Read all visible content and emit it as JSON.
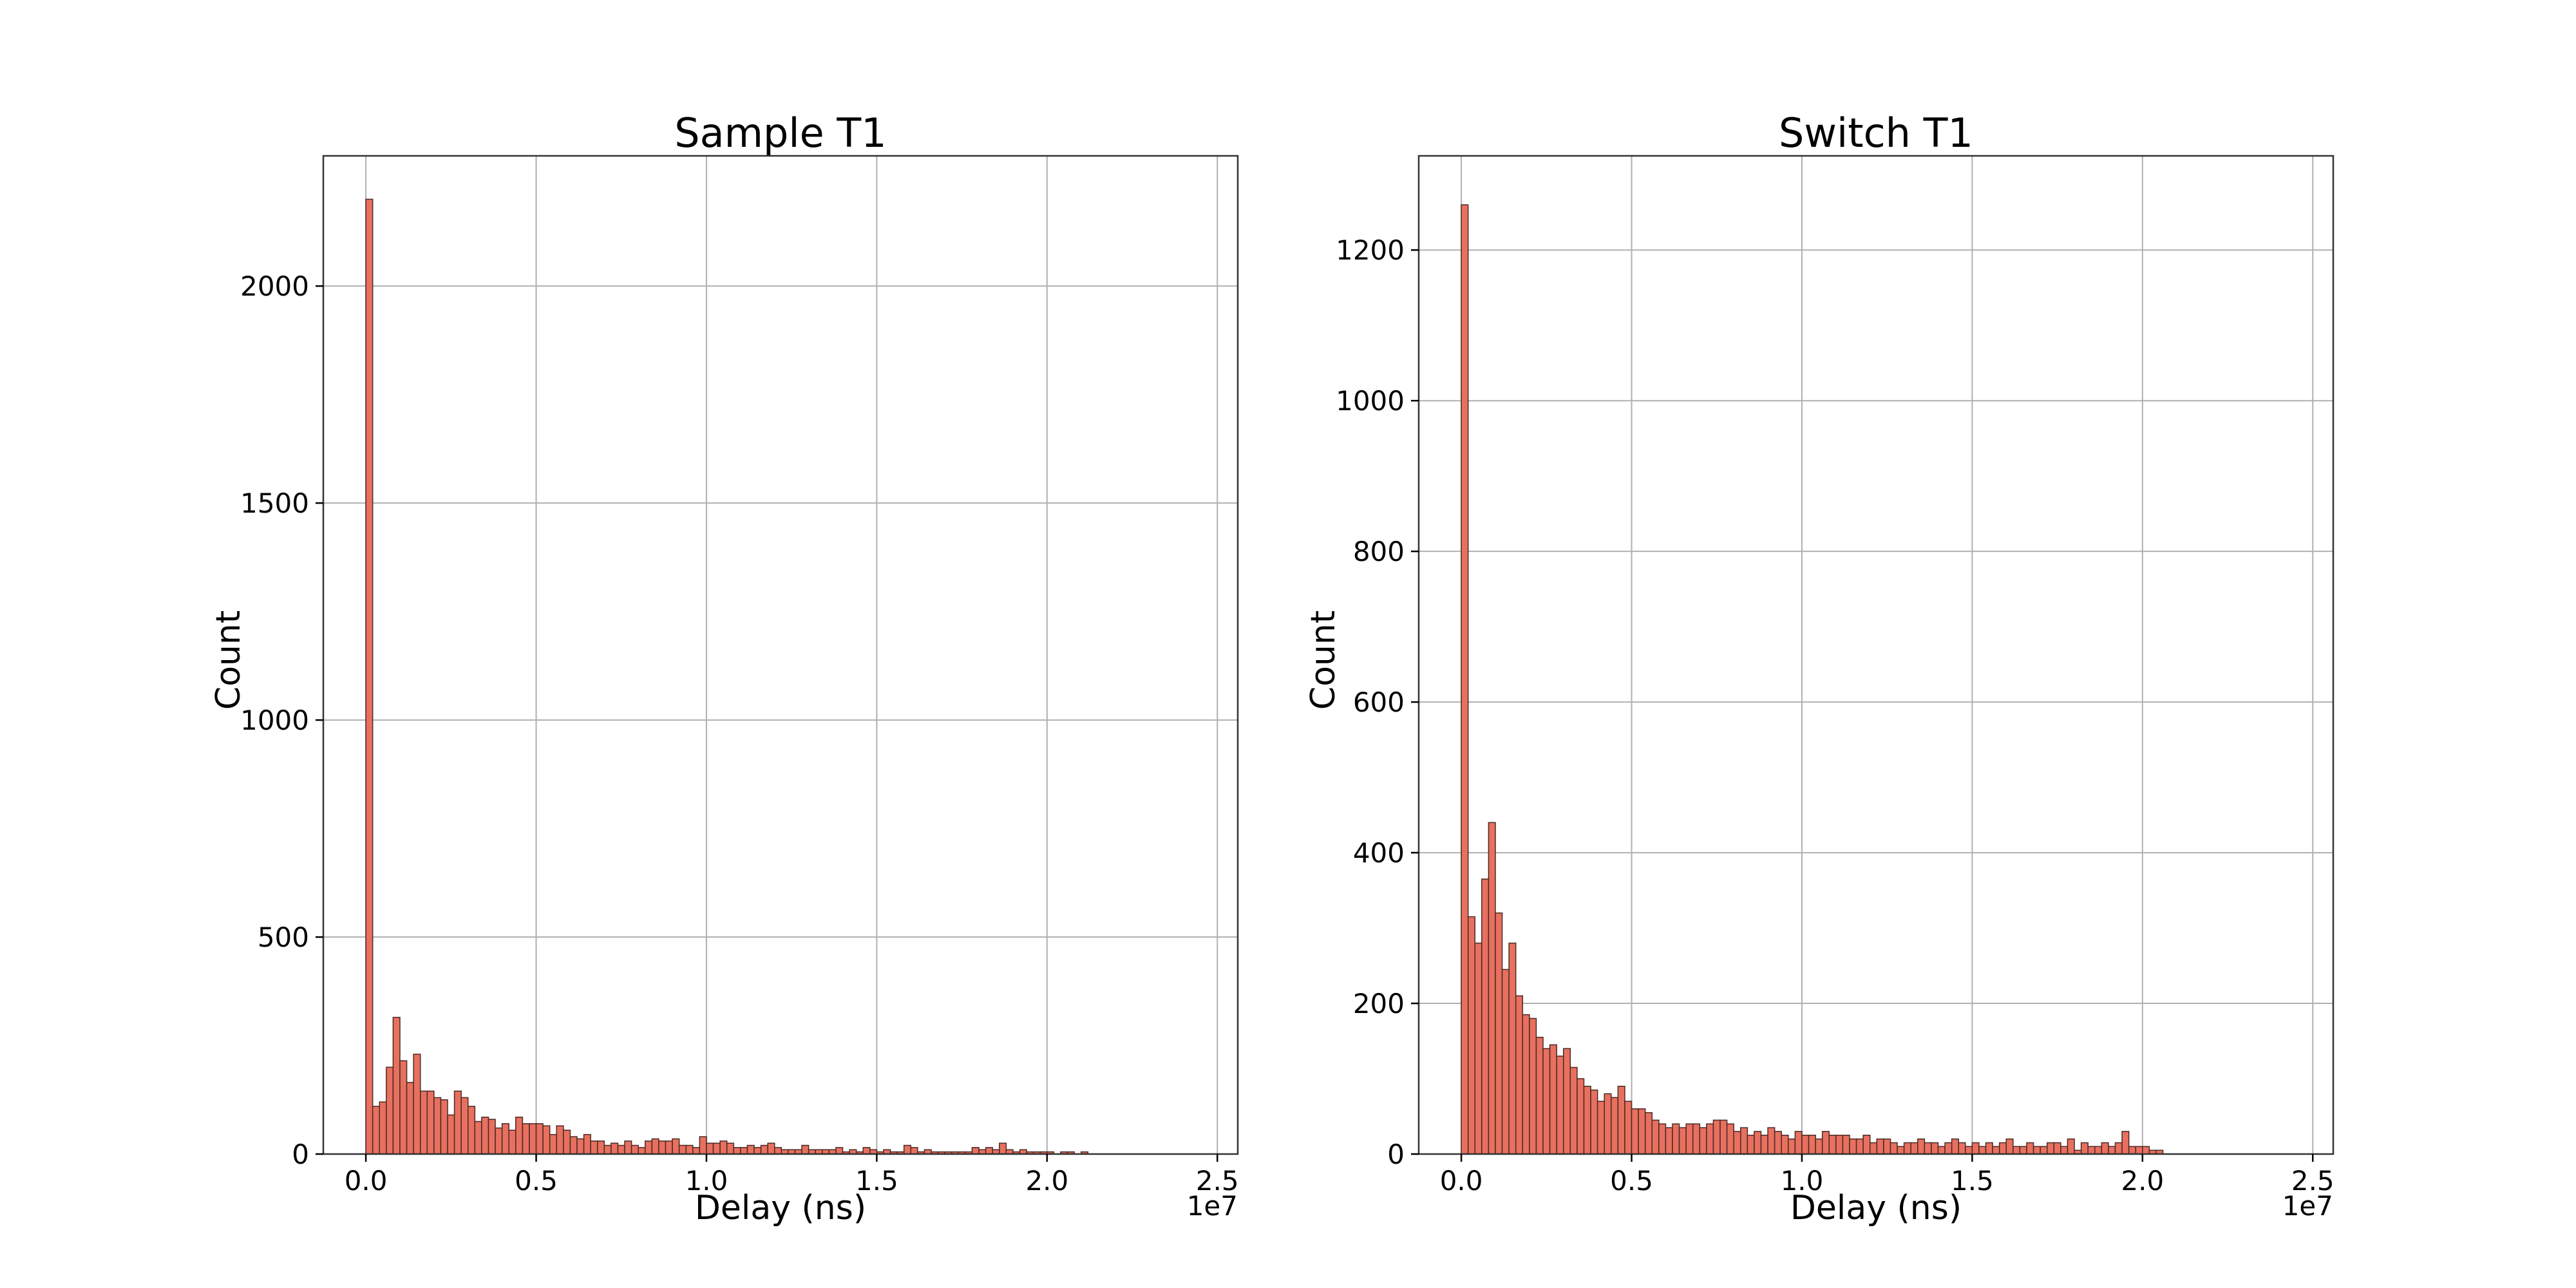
{
  "colors": {
    "bar_fill": "#e8705f",
    "bar_edge": "#4a2a26",
    "grid": "#b0b0b0"
  },
  "chart_data": [
    {
      "type": "bar",
      "title": "Sample T1",
      "xlabel": "Delay (ns)",
      "ylabel": "Count",
      "x_offset_label": "1e7",
      "grid": true,
      "xlim": [
        -0.125,
        2.56
      ],
      "ylim": [
        0,
        2300
      ],
      "xticks": [
        0,
        0.5,
        1.0,
        1.5,
        2.0,
        2.5
      ],
      "xtick_labels": [
        "0.0",
        "0.5",
        "1.0",
        "1.5",
        "2.0",
        "2.5"
      ],
      "yticks": [
        0,
        500,
        1000,
        1500,
        2000
      ],
      "ytick_labels": [
        "0",
        "500",
        "1000",
        "1500",
        "2000"
      ],
      "bin_start": 0,
      "bin_width": 0.2,
      "bins": 120,
      "values": [
        2200,
        110,
        120,
        200,
        315,
        215,
        165,
        230,
        145,
        145,
        130,
        125,
        90,
        145,
        130,
        110,
        75,
        85,
        80,
        60,
        70,
        55,
        85,
        70,
        70,
        70,
        65,
        45,
        65,
        55,
        40,
        35,
        45,
        30,
        30,
        20,
        25,
        20,
        30,
        20,
        15,
        30,
        35,
        30,
        30,
        35,
        20,
        20,
        15,
        40,
        25,
        25,
        30,
        25,
        15,
        15,
        20,
        15,
        20,
        25,
        15,
        10,
        10,
        10,
        20,
        10,
        10,
        10,
        10,
        15,
        5,
        10,
        5,
        15,
        10,
        5,
        10,
        5,
        5,
        20,
        15,
        5,
        10,
        5,
        5,
        5,
        5,
        5,
        5,
        15,
        10,
        15,
        10,
        25,
        10,
        5,
        10,
        5,
        5,
        5,
        5,
        0,
        5,
        5,
        0,
        5,
        0,
        0,
        0,
        0,
        0,
        0,
        0,
        0,
        0,
        0,
        0,
        0,
        0,
        0
      ]
    },
    {
      "type": "bar",
      "title": "Switch T1",
      "xlabel": "Delay (ns)",
      "ylabel": "Count",
      "x_offset_label": "1e7",
      "grid": true,
      "xlim": [
        -0.125,
        2.56
      ],
      "ylim": [
        0,
        1325
      ],
      "xticks": [
        0,
        0.5,
        1.0,
        1.5,
        2.0,
        2.5
      ],
      "xtick_labels": [
        "0.0",
        "0.5",
        "1.0",
        "1.5",
        "2.0",
        "2.5"
      ],
      "yticks": [
        0,
        200,
        400,
        600,
        800,
        1000,
        1200
      ],
      "ytick_labels": [
        "0",
        "200",
        "400",
        "600",
        "800",
        "1000",
        "1200"
      ],
      "bin_start": 0,
      "bin_width": 0.2,
      "bins": 120,
      "values": [
        1260,
        315,
        280,
        365,
        440,
        320,
        245,
        280,
        210,
        185,
        180,
        155,
        140,
        145,
        130,
        140,
        115,
        100,
        90,
        85,
        70,
        80,
        75,
        90,
        70,
        60,
        60,
        55,
        45,
        40,
        35,
        40,
        35,
        40,
        40,
        35,
        40,
        45,
        45,
        40,
        30,
        35,
        25,
        30,
        25,
        35,
        30,
        25,
        20,
        30,
        25,
        25,
        20,
        30,
        25,
        25,
        25,
        20,
        20,
        25,
        15,
        20,
        20,
        15,
        10,
        15,
        15,
        20,
        15,
        15,
        10,
        15,
        20,
        15,
        10,
        15,
        10,
        15,
        10,
        15,
        20,
        10,
        10,
        15,
        10,
        10,
        15,
        15,
        10,
        20,
        5,
        15,
        10,
        10,
        15,
        10,
        15,
        30,
        10,
        10,
        10,
        5,
        5,
        0,
        0,
        0,
        0,
        0,
        0,
        0,
        0,
        0,
        0,
        0,
        0,
        0,
        0,
        0,
        0,
        0
      ]
    }
  ]
}
